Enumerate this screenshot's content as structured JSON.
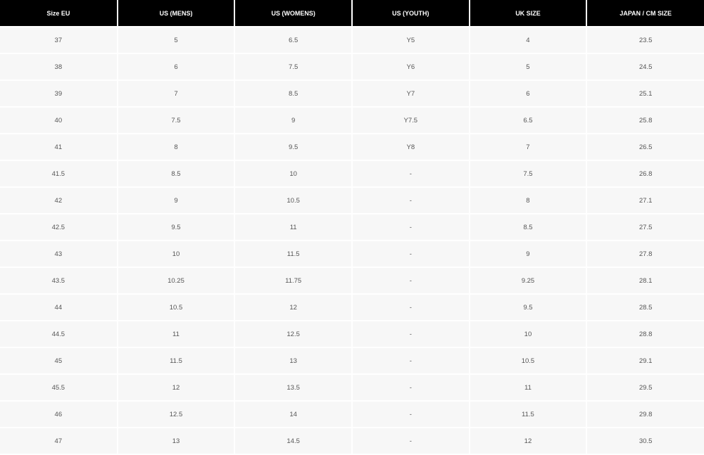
{
  "table": {
    "headers": [
      "Size EU",
      "US (MENS)",
      "US (WOMENS)",
      "US (YOUTH)",
      "UK SIZE",
      "JAPAN / CM SIZE"
    ],
    "rows": [
      [
        "37",
        "5",
        "6.5",
        "Y5",
        "4",
        "23.5"
      ],
      [
        "38",
        "6",
        "7.5",
        "Y6",
        "5",
        "24.5"
      ],
      [
        "39",
        "7",
        "8.5",
        "Y7",
        "6",
        "25.1"
      ],
      [
        "40",
        "7.5",
        "9",
        "Y7.5",
        "6.5",
        "25.8"
      ],
      [
        "41",
        "8",
        "9.5",
        "Y8",
        "7",
        "26.5"
      ],
      [
        "41.5",
        "8.5",
        "10",
        "-",
        "7.5",
        "26.8"
      ],
      [
        "42",
        "9",
        "10.5",
        "-",
        "8",
        "27.1"
      ],
      [
        "42.5",
        "9.5",
        "11",
        "-",
        "8.5",
        "27.5"
      ],
      [
        "43",
        "10",
        "11.5",
        "-",
        "9",
        "27.8"
      ],
      [
        "43.5",
        "10.25",
        "11.75",
        "-",
        "9.25",
        "28.1"
      ],
      [
        "44",
        "10.5",
        "12",
        "-",
        "9.5",
        "28.5"
      ],
      [
        "44.5",
        "11",
        "12.5",
        "-",
        "10",
        "28.8"
      ],
      [
        "45",
        "11.5",
        "13",
        "-",
        "10.5",
        "29.1"
      ],
      [
        "45.5",
        "12",
        "13.5",
        "-",
        "11",
        "29.5"
      ],
      [
        "46",
        "12.5",
        "14",
        "-",
        "11.5",
        "29.8"
      ],
      [
        "47",
        "13",
        "14.5",
        "-",
        "12",
        "30.5"
      ]
    ]
  },
  "colors": {
    "header_bg": "#000000",
    "header_text": "#ffffff",
    "cell_bg": "#f7f7f7",
    "cell_text": "#555555"
  }
}
